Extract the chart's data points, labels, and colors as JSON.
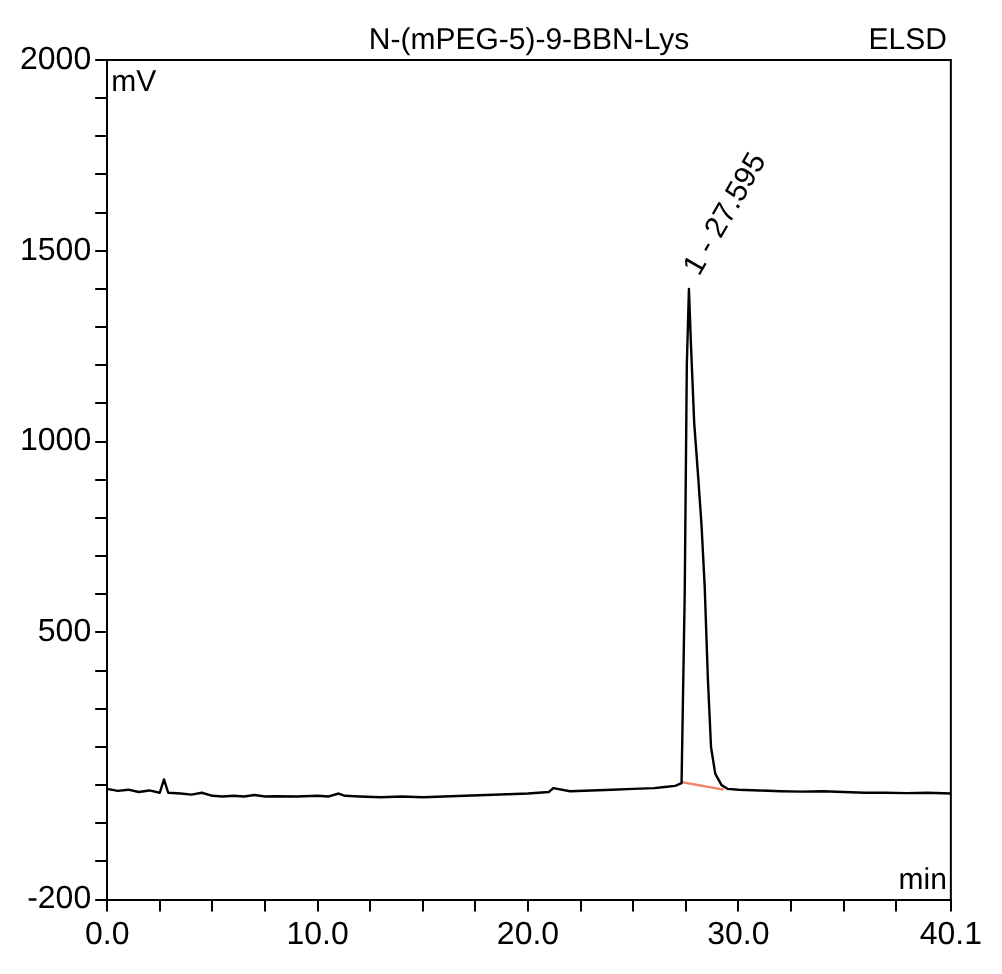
{
  "chart_data": {
    "type": "line",
    "title": "N-(mPEG-5)-9-BBN-Lys",
    "subtitle": "ELSD",
    "xlabel": "min",
    "ylabel": "mV",
    "marker": "none",
    "line_style": "solid",
    "legend": false,
    "xlim": [
      0,
      40.1
    ],
    "xticks": [
      {
        "value": 0,
        "label": "0.0"
      },
      {
        "value": 2.5,
        "label": null
      },
      {
        "value": 5,
        "label": null
      },
      {
        "value": 7.5,
        "label": null
      },
      {
        "value": 10,
        "label": "10.0"
      },
      {
        "value": 12.5,
        "label": null
      },
      {
        "value": 15,
        "label": null
      },
      {
        "value": 17.5,
        "label": null
      },
      {
        "value": 20,
        "label": "20.0"
      },
      {
        "value": 22.5,
        "label": null
      },
      {
        "value": 25,
        "label": null
      },
      {
        "value": 27.5,
        "label": null
      },
      {
        "value": 30,
        "label": "30.0"
      },
      {
        "value": 32.5,
        "label": null
      },
      {
        "value": 35,
        "label": null
      },
      {
        "value": 37.5,
        "label": null
      },
      {
        "value": 40.1,
        "label": "40.1"
      }
    ],
    "ylim": [
      -200,
      2000
    ],
    "yticks": [
      -200,
      {
        "value": -100,
        "label": null
      },
      {
        "value": 0,
        "label": null
      },
      {
        "value": 100,
        "label": null
      },
      {
        "value": 200,
        "label": null
      },
      {
        "value": 300,
        "label": null
      },
      {
        "value": 400,
        "label": null
      },
      500,
      {
        "value": 600,
        "label": null
      },
      {
        "value": 700,
        "label": null
      },
      {
        "value": 800,
        "label": null
      },
      {
        "value": 900,
        "label": null
      },
      1000,
      {
        "value": 1100,
        "label": null
      },
      {
        "value": 1200,
        "label": null
      },
      {
        "value": 1300,
        "label": null
      },
      {
        "value": 1400,
        "label": null
      },
      1500,
      {
        "value": 1600,
        "label": null
      },
      {
        "value": 1700,
        "label": null
      },
      {
        "value": 1800,
        "label": null
      },
      {
        "value": 1900,
        "label": null
      },
      2000
    ],
    "annotations": [
      {
        "text": "1 - 27.595",
        "x": 27.595,
        "y": 1400
      }
    ],
    "series": [
      {
        "color": "#000000",
        "x": [
          0,
          0.5,
          1,
          1.5,
          2,
          2.5,
          2.7,
          2.9,
          3.5,
          4,
          4.5,
          5,
          5.5,
          6,
          6.5,
          7,
          7.5,
          8,
          9,
          10,
          10.5,
          11,
          11.3,
          12,
          13,
          14,
          15,
          16,
          17,
          18,
          19,
          20,
          21,
          21.2,
          22,
          23,
          24,
          25,
          26,
          26.5,
          27,
          27.3,
          27.45,
          27.55,
          27.65,
          27.75,
          27.9,
          28.1,
          28.25,
          28.4,
          28.55,
          28.7,
          28.9,
          29.2,
          29.5,
          30,
          31,
          32,
          33,
          34,
          35,
          36,
          37,
          38,
          39,
          40.1
        ],
        "values": [
          90,
          85,
          88,
          82,
          86,
          80,
          115,
          80,
          78,
          75,
          80,
          72,
          70,
          72,
          70,
          74,
          70,
          71,
          70,
          72,
          70,
          78,
          72,
          70,
          68,
          70,
          68,
          70,
          72,
          74,
          76,
          78,
          82,
          92,
          84,
          86,
          88,
          90,
          92,
          95,
          98,
          105,
          600,
          1200,
          1400,
          1250,
          1050,
          900,
          780,
          620,
          380,
          200,
          130,
          100,
          90,
          88,
          86,
          84,
          83,
          84,
          82,
          80,
          80,
          79,
          80,
          78
        ]
      },
      {
        "color": "#f08060",
        "x": [
          27.3,
          29.3
        ],
        "values": [
          108,
          88
        ]
      }
    ]
  }
}
